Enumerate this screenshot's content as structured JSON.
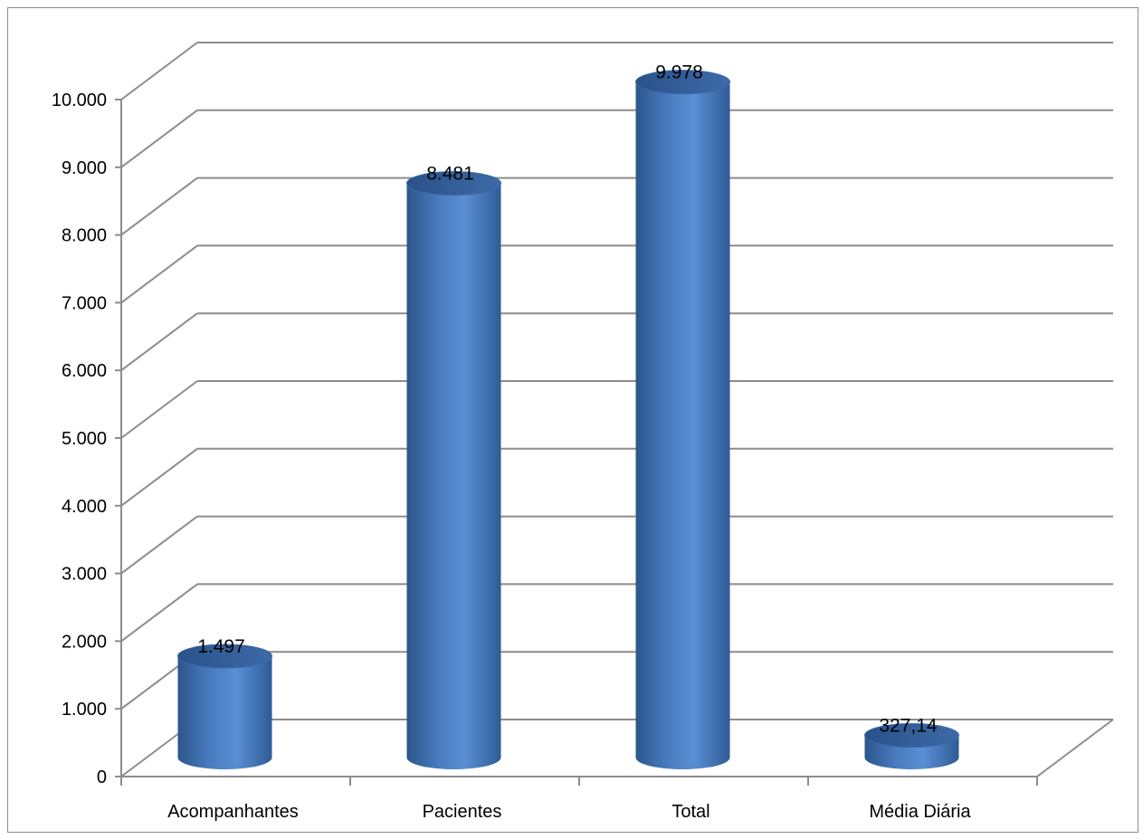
{
  "chart_data": {
    "type": "bar",
    "style": "3d-cylinder",
    "title": "",
    "xlabel": "",
    "ylabel": "",
    "categories": [
      "Acompanhantes",
      "Pacientes",
      "Total",
      "Média Diária"
    ],
    "values": [
      1497,
      8481,
      9978,
      327.14
    ],
    "data_labels": [
      "1.497",
      "8.481",
      "9.978",
      "327,14"
    ],
    "ylim": [
      0,
      10000
    ],
    "y_ticks": [
      0,
      1000,
      2000,
      3000,
      4000,
      5000,
      6000,
      7000,
      8000,
      9000,
      10000
    ],
    "y_tick_labels": [
      "0",
      "1.000",
      "2.000",
      "3.000",
      "4.000",
      "5.000",
      "6.000",
      "7.000",
      "8.000",
      "9.000",
      "10.000"
    ],
    "grid": true,
    "legend": "none",
    "colors": {
      "bar": "#4f81bd",
      "bar_dark": "#2f5a91",
      "bar_light": "#6e9bd8",
      "grid": "#8c8c8c"
    }
  }
}
